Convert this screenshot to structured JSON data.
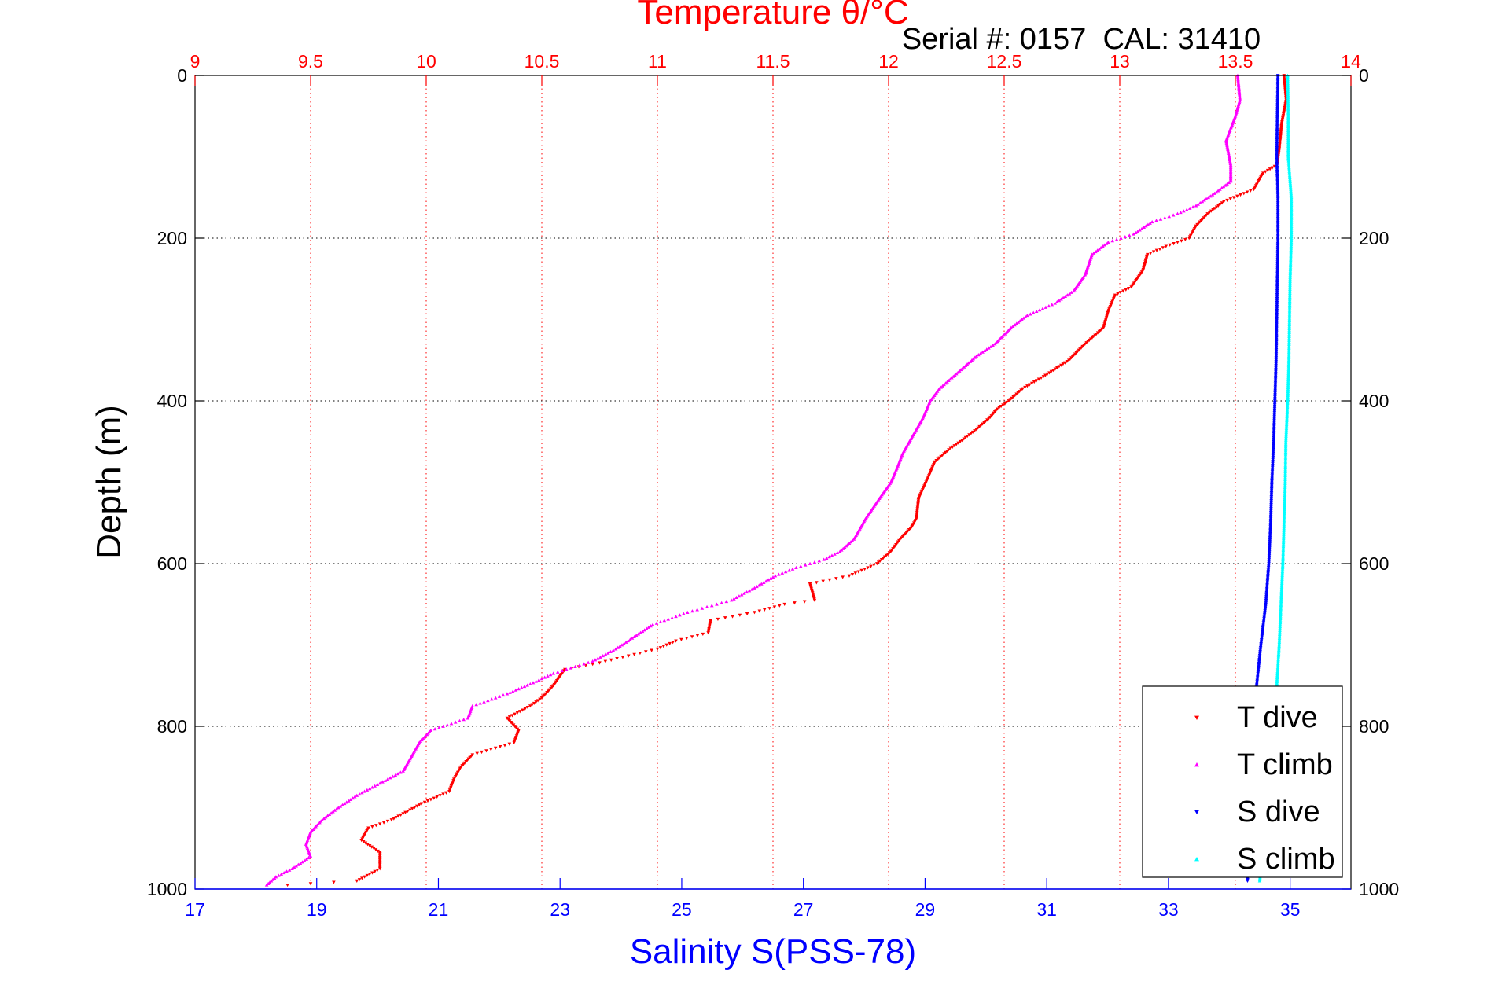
{
  "chart_data": {
    "type": "scatter",
    "title": "Temperature θ/°C",
    "subtitle": "Serial #: 0157  CAL: 31410",
    "ylabel": "Depth (m)",
    "xlabel_bottom": "Salinity S(PSS-78)",
    "xlabel_top": "Temperature θ/°C",
    "depth_range": [
      0,
      1000
    ],
    "depth_reversed": true,
    "temperature_range": [
      9,
      14
    ],
    "salinity_range": [
      17,
      36
    ],
    "grid": true,
    "legend_position": "bottom-right",
    "depth_ticks": [
      "0",
      "200",
      "400",
      "600",
      "800",
      "1000"
    ],
    "temperature_ticks": [
      "9",
      "9.5",
      "10",
      "10.5",
      "11",
      "11.5",
      "12",
      "12.5",
      "13",
      "13.5",
      "14"
    ],
    "salinity_ticks": [
      "17",
      "19",
      "21",
      "23",
      "25",
      "27",
      "29",
      "31",
      "33",
      "35"
    ],
    "colors": {
      "temperature_axis": "#ff0000",
      "salinity_axis": "#0000ff",
      "t_dive": "#ff0000",
      "t_climb": "#ff00ff",
      "s_dive": "#0000ff",
      "s_climb": "#00ffff"
    },
    "series": [
      {
        "name": "T dive",
        "axis": "temperature",
        "marker": "triangle-down",
        "color": "#ff0000",
        "points": [
          [
            13.71,
            0
          ],
          [
            13.72,
            30
          ],
          [
            13.7,
            60
          ],
          [
            13.69,
            90
          ],
          [
            13.68,
            110
          ],
          [
            13.62,
            120
          ],
          [
            13.58,
            140
          ],
          [
            13.45,
            155
          ],
          [
            13.38,
            170
          ],
          [
            13.33,
            185
          ],
          [
            13.3,
            200
          ],
          [
            13.2,
            210
          ],
          [
            13.12,
            220
          ],
          [
            13.1,
            240
          ],
          [
            13.05,
            260
          ],
          [
            12.98,
            270
          ],
          [
            12.95,
            290
          ],
          [
            12.93,
            310
          ],
          [
            12.85,
            330
          ],
          [
            12.78,
            350
          ],
          [
            12.67,
            370
          ],
          [
            12.58,
            385
          ],
          [
            12.52,
            400
          ],
          [
            12.47,
            410
          ],
          [
            12.44,
            420
          ],
          [
            12.38,
            435
          ],
          [
            12.31,
            450
          ],
          [
            12.26,
            460
          ],
          [
            12.2,
            475
          ],
          [
            12.17,
            495
          ],
          [
            12.13,
            520
          ],
          [
            12.12,
            545
          ],
          [
            12.1,
            555
          ],
          [
            12.05,
            570
          ],
          [
            12.01,
            585
          ],
          [
            11.95,
            600
          ],
          [
            11.83,
            615
          ],
          [
            11.66,
            625
          ],
          [
            11.68,
            645
          ],
          [
            11.55,
            650
          ],
          [
            11.42,
            660
          ],
          [
            11.23,
            670
          ],
          [
            11.22,
            685
          ],
          [
            11.08,
            695
          ],
          [
            11.0,
            705
          ],
          [
            10.85,
            715
          ],
          [
            10.75,
            722
          ],
          [
            10.6,
            730
          ],
          [
            10.55,
            750
          ],
          [
            10.5,
            765
          ],
          [
            10.45,
            775
          ],
          [
            10.35,
            790
          ],
          [
            10.4,
            805
          ],
          [
            10.38,
            820
          ],
          [
            10.2,
            835
          ],
          [
            10.15,
            850
          ],
          [
            10.12,
            865
          ],
          [
            10.1,
            880
          ],
          [
            9.98,
            895
          ],
          [
            9.85,
            915
          ],
          [
            9.75,
            925
          ],
          [
            9.72,
            940
          ],
          [
            9.8,
            955
          ],
          [
            9.8,
            975
          ],
          [
            9.7,
            990
          ],
          [
            9.4,
            995
          ]
        ]
      },
      {
        "name": "T climb",
        "axis": "temperature",
        "marker": "triangle-up",
        "color": "#ff00ff",
        "points": [
          [
            13.51,
            0
          ],
          [
            13.52,
            30
          ],
          [
            13.5,
            50
          ],
          [
            13.46,
            80
          ],
          [
            13.48,
            110
          ],
          [
            13.48,
            130
          ],
          [
            13.41,
            145
          ],
          [
            13.33,
            160
          ],
          [
            13.25,
            170
          ],
          [
            13.14,
            180
          ],
          [
            13.06,
            195
          ],
          [
            12.95,
            205
          ],
          [
            12.88,
            220
          ],
          [
            12.85,
            245
          ],
          [
            12.8,
            265
          ],
          [
            12.72,
            280
          ],
          [
            12.6,
            295
          ],
          [
            12.53,
            310
          ],
          [
            12.46,
            330
          ],
          [
            12.38,
            345
          ],
          [
            12.32,
            360
          ],
          [
            12.26,
            375
          ],
          [
            12.22,
            385
          ],
          [
            12.18,
            400
          ],
          [
            12.15,
            420
          ],
          [
            12.1,
            445
          ],
          [
            12.06,
            465
          ],
          [
            12.04,
            480
          ],
          [
            12.01,
            500
          ],
          [
            11.96,
            520
          ],
          [
            11.9,
            545
          ],
          [
            11.85,
            570
          ],
          [
            11.79,
            585
          ],
          [
            11.72,
            595
          ],
          [
            11.6,
            605
          ],
          [
            11.51,
            615
          ],
          [
            11.42,
            630
          ],
          [
            11.32,
            645
          ],
          [
            11.13,
            660
          ],
          [
            10.98,
            675
          ],
          [
            10.9,
            690
          ],
          [
            10.82,
            705
          ],
          [
            10.72,
            720
          ],
          [
            10.55,
            735
          ],
          [
            10.45,
            748
          ],
          [
            10.35,
            760
          ],
          [
            10.2,
            775
          ],
          [
            10.18,
            790
          ],
          [
            10.02,
            805
          ],
          [
            9.97,
            820
          ],
          [
            9.93,
            840
          ],
          [
            9.9,
            855
          ],
          [
            9.8,
            870
          ],
          [
            9.7,
            885
          ],
          [
            9.62,
            900
          ],
          [
            9.55,
            915
          ],
          [
            9.5,
            930
          ],
          [
            9.48,
            945
          ],
          [
            9.5,
            960
          ],
          [
            9.42,
            975
          ],
          [
            9.35,
            985
          ],
          [
            9.31,
            995
          ]
        ]
      },
      {
        "name": "S dive",
        "axis": "salinity",
        "marker": "triangle-down",
        "color": "#0000ff",
        "points": [
          [
            34.8,
            0
          ],
          [
            34.79,
            50
          ],
          [
            34.78,
            100
          ],
          [
            34.8,
            150
          ],
          [
            34.8,
            200
          ],
          [
            34.79,
            250
          ],
          [
            34.78,
            300
          ],
          [
            34.77,
            350
          ],
          [
            34.75,
            400
          ],
          [
            34.73,
            450
          ],
          [
            34.7,
            500
          ],
          [
            34.68,
            550
          ],
          [
            34.65,
            600
          ],
          [
            34.6,
            650
          ],
          [
            34.52,
            700
          ],
          [
            34.45,
            750
          ],
          [
            34.4,
            800
          ],
          [
            34.36,
            850
          ],
          [
            34.35,
            900
          ],
          [
            34.32,
            950
          ],
          [
            34.3,
            990
          ]
        ]
      },
      {
        "name": "S climb",
        "axis": "salinity",
        "marker": "triangle-up",
        "color": "#00ffff",
        "points": [
          [
            34.96,
            0
          ],
          [
            34.97,
            50
          ],
          [
            34.97,
            100
          ],
          [
            35.02,
            150
          ],
          [
            35.02,
            200
          ],
          [
            35.0,
            250
          ],
          [
            34.99,
            300
          ],
          [
            34.98,
            350
          ],
          [
            34.96,
            400
          ],
          [
            34.93,
            450
          ],
          [
            34.92,
            500
          ],
          [
            34.9,
            550
          ],
          [
            34.88,
            600
          ],
          [
            34.85,
            650
          ],
          [
            34.82,
            700
          ],
          [
            34.78,
            750
          ],
          [
            34.72,
            800
          ],
          [
            34.66,
            850
          ],
          [
            34.6,
            900
          ],
          [
            34.55,
            950
          ],
          [
            34.5,
            990
          ]
        ]
      }
    ]
  }
}
